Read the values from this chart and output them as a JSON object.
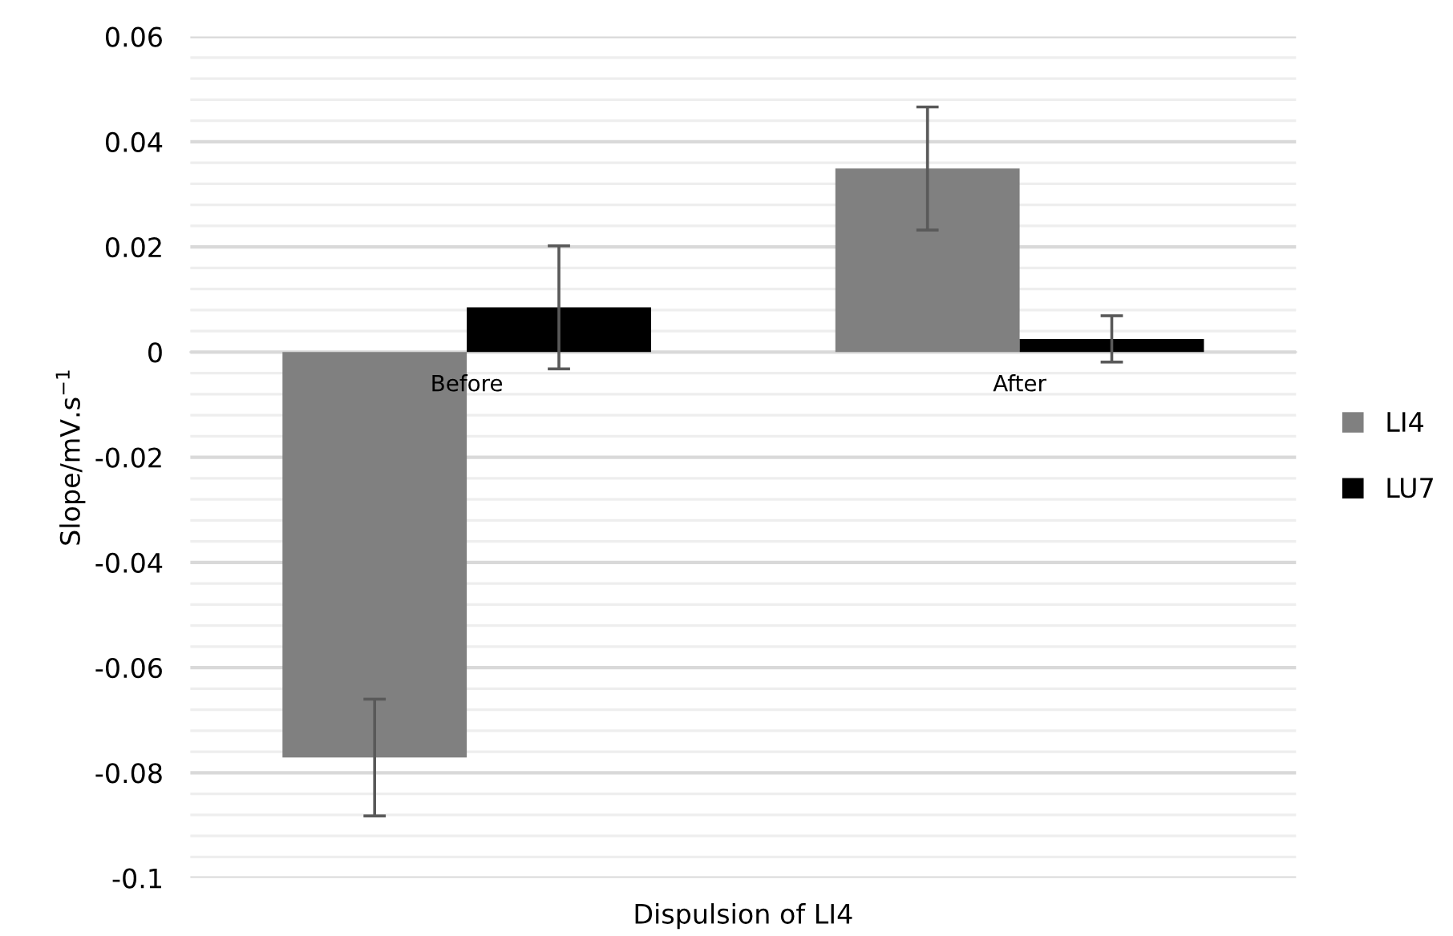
{
  "chart_data": {
    "type": "bar",
    "xlabel": "Dispulsion of LI4",
    "ylabel": "Slope/mV.s$^{−1}$",
    "categories": [
      "Before",
      "After"
    ],
    "series": [
      {
        "name": "LI4",
        "color": "#808080",
        "values": [
          -0.0771,
          0.0349
        ],
        "errors": [
          0.0111,
          0.0117
        ]
      },
      {
        "name": "LU7",
        "color": "#000000",
        "values": [
          0.0085,
          0.0025
        ],
        "errors": [
          0.0117,
          0.0044
        ]
      }
    ],
    "ylim": [
      -0.1,
      0.06
    ],
    "yticks": [
      -0.1,
      {
        "value": -0.096,
        "label": null
      },
      {
        "value": -0.092,
        "label": null
      },
      {
        "value": -0.088,
        "label": null
      },
      {
        "value": -0.084,
        "label": null
      },
      -0.08,
      {
        "value": -0.076,
        "label": null
      },
      {
        "value": -0.072,
        "label": null
      },
      {
        "value": -0.068,
        "label": null
      },
      {
        "value": -0.064,
        "label": null
      },
      -0.06,
      {
        "value": -0.056,
        "label": null
      },
      {
        "value": -0.052,
        "label": null
      },
      {
        "value": -0.048,
        "label": null
      },
      {
        "value": -0.044,
        "label": null
      },
      -0.04,
      {
        "value": -0.036,
        "label": null
      },
      {
        "value": -0.032,
        "label": null
      },
      {
        "value": -0.028,
        "label": null
      },
      {
        "value": -0.024,
        "label": null
      },
      -0.02,
      {
        "value": -0.016,
        "label": null
      },
      {
        "value": -0.012,
        "label": null
      },
      {
        "value": -0.008,
        "label": null
      },
      {
        "value": -0.004,
        "label": null
      },
      0,
      {
        "value": 0.004,
        "label": null
      },
      {
        "value": 0.008,
        "label": null
      },
      {
        "value": 0.012,
        "label": null
      },
      {
        "value": 0.016,
        "label": null
      },
      0.02,
      {
        "value": 0.024,
        "label": null
      },
      {
        "value": 0.028,
        "label": null
      },
      {
        "value": 0.032,
        "label": null
      },
      {
        "value": 0.036,
        "label": null
      },
      0.04,
      {
        "value": 0.044,
        "label": null
      },
      {
        "value": 0.048,
        "label": null
      },
      {
        "value": 0.052,
        "label": null
      },
      {
        "value": 0.056,
        "label": null
      },
      0.06
    ],
    "grid": "y",
    "legend": "right"
  }
}
